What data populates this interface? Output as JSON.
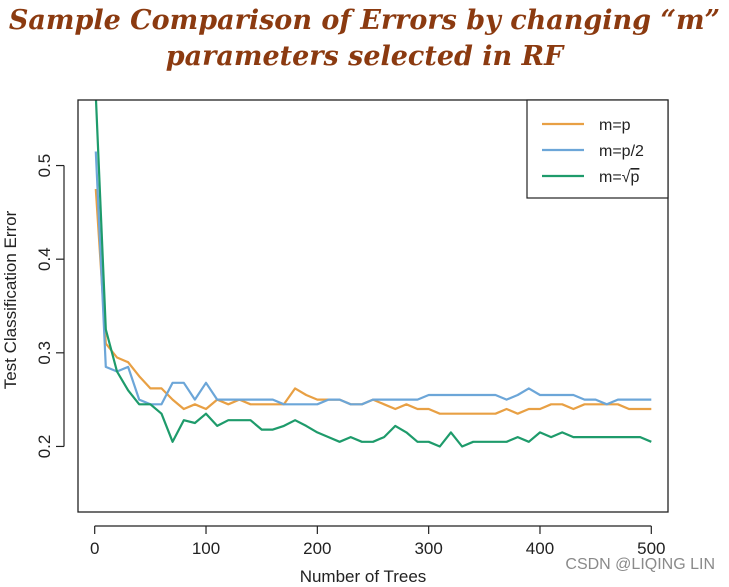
{
  "title_line1": "Sample Comparison of Errors by changing “m”",
  "title_line2": "parameters selected in RF",
  "watermark": "CSDN @LIQING LIN",
  "chart_data": {
    "type": "line",
    "xlabel": "Number of Trees",
    "ylabel": "Test Classification Error",
    "xlim": [
      -15,
      515
    ],
    "ylim": [
      0.13,
      0.57
    ],
    "xticks": [
      0,
      100,
      200,
      300,
      400,
      500
    ],
    "yticks": [
      0.2,
      0.3,
      0.4,
      0.5
    ],
    "grid": false,
    "legend_position": "top-right",
    "series": [
      {
        "name": "m=p",
        "label_text": "m=p",
        "color": "#E8A044",
        "x": [
          1,
          10,
          20,
          30,
          40,
          50,
          60,
          70,
          80,
          90,
          100,
          110,
          120,
          130,
          140,
          150,
          160,
          170,
          180,
          190,
          200,
          210,
          220,
          230,
          240,
          250,
          260,
          270,
          280,
          290,
          300,
          310,
          320,
          330,
          340,
          350,
          360,
          370,
          380,
          390,
          400,
          410,
          420,
          430,
          440,
          450,
          460,
          470,
          480,
          490,
          500
        ],
        "y": [
          0.475,
          0.31,
          0.295,
          0.29,
          0.275,
          0.262,
          0.262,
          0.25,
          0.24,
          0.245,
          0.24,
          0.25,
          0.245,
          0.25,
          0.245,
          0.245,
          0.245,
          0.245,
          0.262,
          0.255,
          0.25,
          0.25,
          0.25,
          0.245,
          0.245,
          0.25,
          0.245,
          0.24,
          0.245,
          0.24,
          0.24,
          0.235,
          0.235,
          0.235,
          0.235,
          0.235,
          0.235,
          0.24,
          0.235,
          0.24,
          0.24,
          0.245,
          0.245,
          0.24,
          0.245,
          0.245,
          0.245,
          0.245,
          0.24,
          0.24,
          0.24
        ]
      },
      {
        "name": "m=p/2",
        "label_text": "m=p/2",
        "color": "#6CA6D8",
        "x": [
          1,
          10,
          20,
          30,
          40,
          50,
          60,
          70,
          80,
          90,
          100,
          110,
          120,
          130,
          140,
          150,
          160,
          170,
          180,
          190,
          200,
          210,
          220,
          230,
          240,
          250,
          260,
          270,
          280,
          290,
          300,
          310,
          320,
          330,
          340,
          350,
          360,
          370,
          380,
          390,
          400,
          410,
          420,
          430,
          440,
          450,
          460,
          470,
          480,
          490,
          500
        ],
        "y": [
          0.515,
          0.285,
          0.28,
          0.285,
          0.25,
          0.245,
          0.245,
          0.268,
          0.268,
          0.25,
          0.268,
          0.25,
          0.25,
          0.25,
          0.25,
          0.25,
          0.25,
          0.245,
          0.245,
          0.245,
          0.245,
          0.25,
          0.25,
          0.245,
          0.245,
          0.25,
          0.25,
          0.25,
          0.25,
          0.25,
          0.255,
          0.255,
          0.255,
          0.255,
          0.255,
          0.255,
          0.255,
          0.25,
          0.255,
          0.262,
          0.255,
          0.255,
          0.255,
          0.255,
          0.25,
          0.25,
          0.245,
          0.25,
          0.25,
          0.25,
          0.25
        ]
      },
      {
        "name": "m=√p",
        "label_prefix": "m=",
        "label_radicand": "p",
        "color": "#1E9B6B",
        "x": [
          1,
          10,
          20,
          30,
          40,
          50,
          60,
          70,
          80,
          90,
          100,
          110,
          120,
          130,
          140,
          150,
          160,
          170,
          180,
          190,
          200,
          210,
          220,
          230,
          240,
          250,
          260,
          270,
          280,
          290,
          300,
          310,
          320,
          330,
          340,
          350,
          360,
          370,
          380,
          390,
          400,
          410,
          420,
          430,
          440,
          450,
          460,
          470,
          480,
          490,
          500
        ],
        "y": [
          0.575,
          0.325,
          0.28,
          0.26,
          0.245,
          0.245,
          0.235,
          0.205,
          0.228,
          0.225,
          0.235,
          0.222,
          0.228,
          0.228,
          0.228,
          0.218,
          0.218,
          0.222,
          0.228,
          0.222,
          0.215,
          0.21,
          0.205,
          0.21,
          0.205,
          0.205,
          0.21,
          0.222,
          0.215,
          0.205,
          0.205,
          0.2,
          0.215,
          0.2,
          0.205,
          0.205,
          0.205,
          0.205,
          0.21,
          0.205,
          0.215,
          0.21,
          0.215,
          0.21,
          0.21,
          0.21,
          0.21,
          0.21,
          0.21,
          0.21,
          0.205
        ]
      }
    ]
  }
}
